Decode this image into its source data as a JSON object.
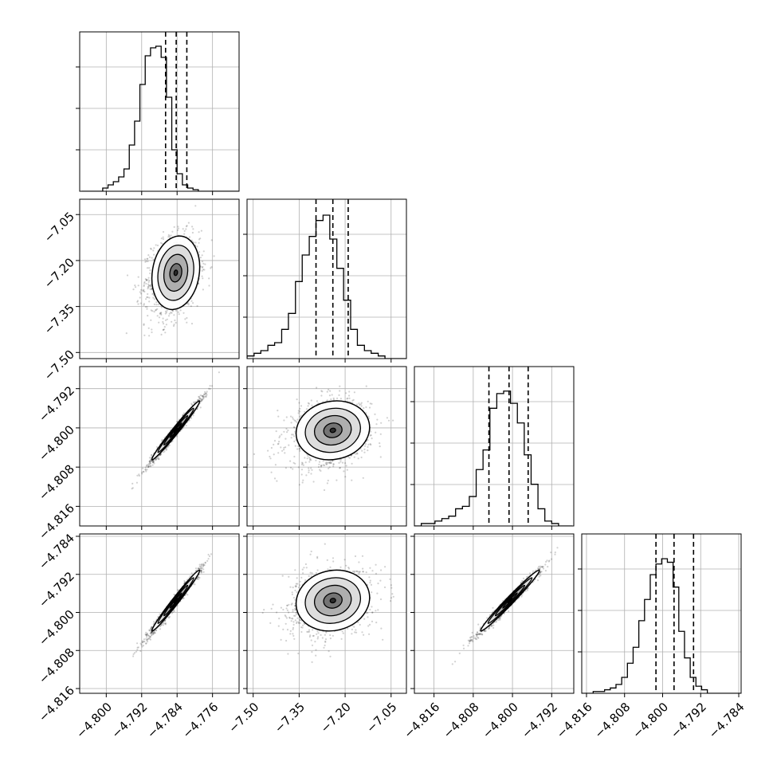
{
  "chart_data": {
    "type": "corner",
    "grid": true,
    "parameters": [
      {
        "xlim": [
          -4.806,
          -4.77
        ],
        "ticks": [
          -4.8,
          -4.792,
          -4.784,
          -4.776
        ],
        "tick_labels": [
          "−4.800",
          "−4.792",
          "−4.784",
          "−4.776"
        ]
      },
      {
        "xlim": [
          -7.52,
          -7.0
        ],
        "ticks": [
          -7.5,
          -7.35,
          -7.2,
          -7.05
        ],
        "tick_labels": [
          "−7.50",
          "−7.35",
          "−7.20",
          "−7.05"
        ]
      },
      {
        "xlim": [
          -4.82,
          -4.7875
        ],
        "ticks": [
          -4.816,
          -4.808,
          -4.8,
          -4.792
        ],
        "tick_labels": [
          "−4.816",
          "−4.808",
          "−4.800",
          "−4.792"
        ]
      },
      {
        "xlim": [
          -4.817,
          -4.7835
        ],
        "ticks": [
          -4.816,
          -4.808,
          -4.8,
          -4.792,
          -4.784
        ],
        "tick_labels": [
          "−4.816",
          "−4.808",
          "−4.800",
          "−4.792",
          "−4.784"
        ]
      }
    ],
    "row_axes": [
      null,
      {
        "ylim": [
          -7.52,
          -7.0
        ],
        "ticks": [
          -7.5,
          -7.35,
          -7.2,
          -7.05
        ],
        "tick_labels": [
          "−7.50",
          "−7.35",
          "−7.20",
          "−7.05"
        ]
      },
      {
        "ylim": [
          -4.82,
          -4.7875
        ],
        "ticks": [
          -4.816,
          -4.808,
          -4.8,
          -4.792
        ],
        "tick_labels": [
          "−4.816",
          "−4.808",
          "−4.800",
          "−4.792"
        ]
      },
      {
        "ylim": [
          -4.817,
          -4.7835
        ],
        "ticks": [
          -4.816,
          -4.808,
          -4.8,
          -4.792,
          -4.784
        ],
        "tick_labels": [
          "−4.816",
          "−4.808",
          "−4.800",
          "−4.792",
          "−4.784"
        ]
      }
    ],
    "histograms": [
      {
        "parameter": 0,
        "quantiles": [
          -4.7866,
          -4.7842,
          -4.7818
        ],
        "ylim": [
          0,
          1.0
        ],
        "bins": [
          -4.8056,
          -4.8044,
          -4.8032,
          -4.802,
          -4.8008,
          -4.7996,
          -4.7984,
          -4.7972,
          -4.796,
          -4.7948,
          -4.7936,
          -4.7924,
          -4.7912,
          -4.79,
          -4.7888,
          -4.7876,
          -4.7864,
          -4.7852,
          -4.784,
          -4.7828,
          -4.7816,
          -4.7804,
          -4.7792,
          -4.778,
          -4.7768,
          -4.7756,
          -4.7744,
          -4.7732,
          -4.772,
          -4.7708,
          -4.7696
        ],
        "counts": [
          0.0,
          0.0,
          0.0,
          0.0,
          0.02,
          0.04,
          0.06,
          0.09,
          0.14,
          0.29,
          0.44,
          0.67,
          0.85,
          0.9,
          0.91,
          0.84,
          0.59,
          0.26,
          0.11,
          0.04,
          0.02,
          0.01,
          0.0,
          0.0,
          0.0,
          0.0,
          0.0,
          0.0,
          0.0,
          0.0
        ]
      },
      {
        "parameter": 1,
        "quantiles": [
          -7.295,
          -7.24,
          -7.19
        ],
        "ylim": [
          0,
          0.6
        ],
        "bins": [
          -7.52,
          -7.497,
          -7.475,
          -7.452,
          -7.43,
          -7.407,
          -7.385,
          -7.362,
          -7.34,
          -7.317,
          -7.295,
          -7.272,
          -7.25,
          -7.227,
          -7.205,
          -7.182,
          -7.16,
          -7.137,
          -7.115,
          -7.092,
          -7.07,
          -7.047,
          -7.025,
          -7.002
        ],
        "counts": [
          0.01,
          0.02,
          0.03,
          0.05,
          0.06,
          0.11,
          0.17,
          0.29,
          0.39,
          0.46,
          0.52,
          0.54,
          0.45,
          0.34,
          0.22,
          0.11,
          0.05,
          0.03,
          0.02,
          0.01,
          0.0,
          0.0,
          0.0
        ]
      },
      {
        "parameter": 2,
        "quantiles": [
          -4.8048,
          -4.8007,
          -4.7968
        ],
        "ylim": [
          0,
          0.65
        ],
        "bins": [
          -4.82,
          -4.8186,
          -4.8172,
          -4.8158,
          -4.8144,
          -4.813,
          -4.8116,
          -4.8102,
          -4.8088,
          -4.8074,
          -4.806,
          -4.8046,
          -4.8032,
          -4.8018,
          -4.8004,
          -4.799,
          -4.7976,
          -4.7962,
          -4.7948,
          -4.7934,
          -4.792,
          -4.7906,
          -4.7892,
          -4.7878
        ],
        "counts": [
          0.0,
          0.01,
          0.01,
          0.02,
          0.03,
          0.04,
          0.07,
          0.08,
          0.12,
          0.23,
          0.31,
          0.48,
          0.54,
          0.55,
          0.5,
          0.42,
          0.29,
          0.17,
          0.07,
          0.02,
          0.01,
          0.0,
          0.0
        ]
      },
      {
        "parameter": 3,
        "quantiles": [
          -4.8014,
          -4.7976,
          -4.7935
        ],
        "ylim": [
          0,
          0.9
        ],
        "bins": [
          -4.817,
          -4.8158,
          -4.8146,
          -4.8134,
          -4.8122,
          -4.811,
          -4.8098,
          -4.8086,
          -4.8074,
          -4.8062,
          -4.805,
          -4.8038,
          -4.8026,
          -4.8014,
          -4.8002,
          -4.799,
          -4.7978,
          -4.7966,
          -4.7954,
          -4.7942,
          -4.793,
          -4.7918,
          -4.7906,
          -4.7894,
          -4.7882,
          -4.787,
          -4.7858,
          -4.7846,
          -4.7834
        ],
        "counts": [
          0.0,
          0.0,
          0.01,
          0.01,
          0.02,
          0.03,
          0.05,
          0.09,
          0.17,
          0.26,
          0.41,
          0.53,
          0.67,
          0.73,
          0.76,
          0.74,
          0.6,
          0.35,
          0.2,
          0.09,
          0.04,
          0.02,
          0.0,
          0.0,
          0.0,
          0.0,
          0.0,
          0.0
        ]
      }
    ],
    "scatter_panels": [
      {
        "row": 1,
        "col": 0,
        "center": [
          -4.7843,
          -7.24
        ],
        "sigma": [
          0.0027,
          0.06
        ],
        "rho": 0.15,
        "skew": 0.8
      },
      {
        "row": 2,
        "col": 0,
        "center": [
          -4.7843,
          -4.8005
        ],
        "sigma": [
          0.0027,
          0.003
        ],
        "rho": 0.985,
        "skew": 0.6
      },
      {
        "row": 2,
        "col": 1,
        "center": [
          -7.24,
          -4.8005
        ],
        "sigma": [
          0.06,
          0.003
        ],
        "rho": 0.1,
        "skew": 0.8
      },
      {
        "row": 3,
        "col": 0,
        "center": [
          -4.7843,
          -4.7975
        ],
        "sigma": [
          0.0027,
          0.0032
        ],
        "rho": 0.985,
        "skew": 0.6
      },
      {
        "row": 3,
        "col": 1,
        "center": [
          -7.24,
          -4.7975
        ],
        "sigma": [
          0.06,
          0.0032
        ],
        "rho": 0.1,
        "skew": 0.8
      },
      {
        "row": 3,
        "col": 2,
        "center": [
          -4.8005,
          -4.7975
        ],
        "sigma": [
          0.003,
          0.0032
        ],
        "rho": 0.985,
        "skew": 0.6
      }
    ]
  }
}
